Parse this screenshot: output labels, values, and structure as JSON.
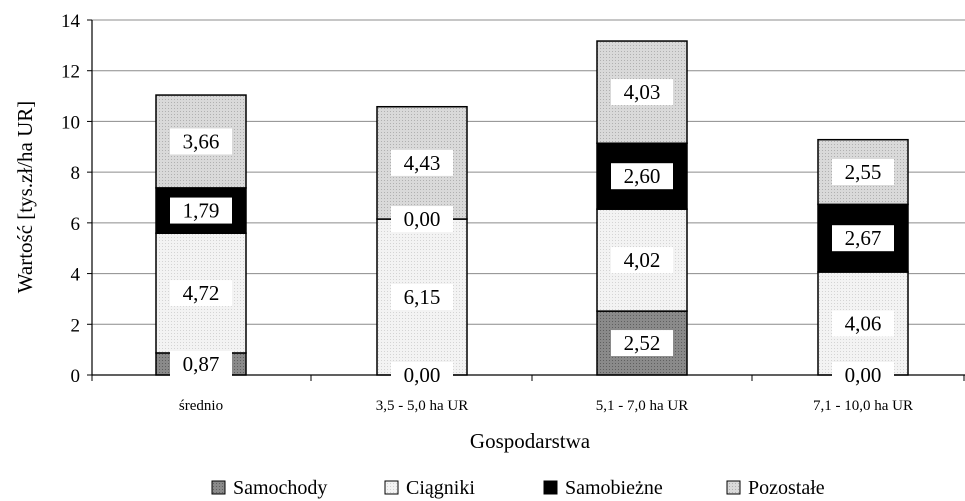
{
  "chart_data": {
    "type": "bar",
    "stacked": true,
    "categories": [
      "średnio",
      "3,5 - 5,0 ha UR",
      "5,1 - 7,0 ha UR",
      "7,1 - 10,0 ha UR"
    ],
    "series": [
      {
        "name": "Samochody",
        "values": [
          0.87,
          0.0,
          2.52,
          0.0
        ],
        "labels": [
          "0,87",
          "0,00",
          "2,52",
          "0,00"
        ],
        "color": "#7f7f7f",
        "label_color": "#ffffff"
      },
      {
        "name": "Ciągniki",
        "values": [
          4.72,
          6.15,
          4.02,
          4.06
        ],
        "labels": [
          "4,72",
          "6,15",
          "4,02",
          "4,06"
        ],
        "color": "#ececec",
        "label_color": "#ffffff"
      },
      {
        "name": "Samobieżne",
        "values": [
          1.79,
          0.0,
          2.6,
          2.67
        ],
        "labels": [
          "1,79",
          "0,00",
          "2,60",
          "2,67"
        ],
        "color": "#000000",
        "label_color": "#ffffff"
      },
      {
        "name": "Pozostałe",
        "values": [
          3.66,
          4.43,
          4.03,
          2.55
        ],
        "labels": [
          "3,66",
          "4,43",
          "4,03",
          "2,55"
        ],
        "color": "#cccccc",
        "label_color": "#ffffff"
      }
    ],
    "title": "",
    "xlabel": "Gospodarstwa",
    "ylabel": "Wartość [tys.zł/ha UR]",
    "ylim": [
      0,
      14
    ],
    "yticks": [
      0,
      2,
      4,
      6,
      8,
      10,
      12,
      14
    ],
    "grid": true,
    "legend": "bottom"
  }
}
